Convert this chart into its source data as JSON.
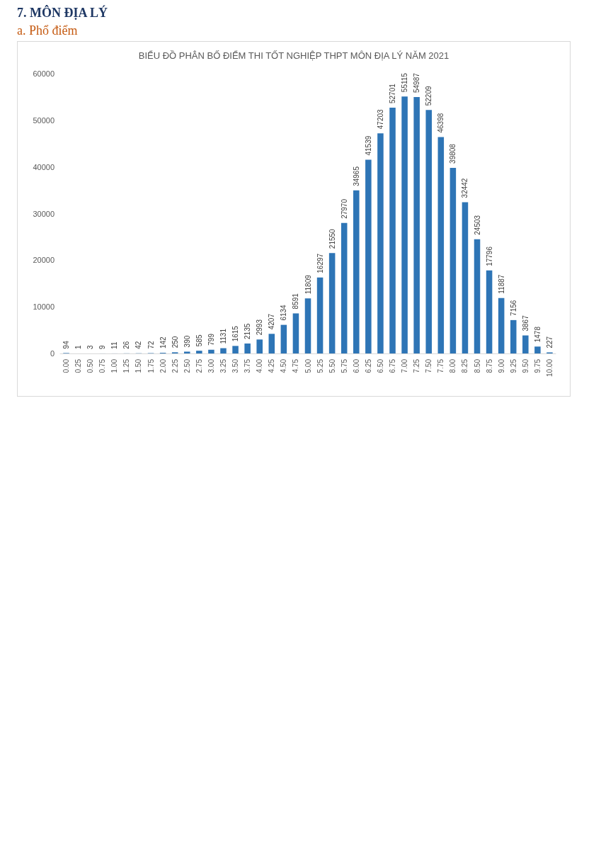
{
  "chart_data": {
    "type": "bar",
    "title": "BIỂU ĐỒ PHÂN BỐ ĐIỂM THI TỐT NGHIỆP THPT MÔN ĐỊA LÝ NĂM 2021",
    "annotations": [
      "7.  MÔN ĐỊA LÝ",
      "a.  Phổ điểm"
    ],
    "categories": [
      "0.00",
      "0.25",
      "0.50",
      "0.75",
      "1.00",
      "1.25",
      "1.50",
      "1.75",
      "2.00",
      "2.25",
      "2.50",
      "2.75",
      "3.00",
      "3.25",
      "3.50",
      "3.75",
      "4.00",
      "4.25",
      "4.50",
      "4.75",
      "5.00",
      "5.25",
      "5.50",
      "5.75",
      "6.00",
      "6.25",
      "6.50",
      "6.75",
      "7.00",
      "7.25",
      "7.50",
      "7.75",
      "8.00",
      "8.25",
      "8.50",
      "8.75",
      "9.00",
      "9.25",
      "9.50",
      "9.75",
      "10.00"
    ],
    "values": [
      94,
      1,
      3,
      9,
      11,
      26,
      42,
      72,
      142,
      250,
      390,
      585,
      799,
      1131,
      1615,
      2135,
      2993,
      4207,
      6134,
      8591,
      11809,
      16297,
      21550,
      27970,
      34965,
      41539,
      47203,
      52701,
      55115,
      54987,
      52209,
      46398,
      39808,
      32442,
      24503,
      17796,
      11887,
      7156,
      3867,
      1478,
      227
    ],
    "color": "#2e75b6",
    "ylim": [
      0,
      60000
    ],
    "yticks": [
      0,
      10000,
      20000,
      30000,
      40000,
      50000,
      60000
    ],
    "grid": false,
    "data_labels": true
  }
}
